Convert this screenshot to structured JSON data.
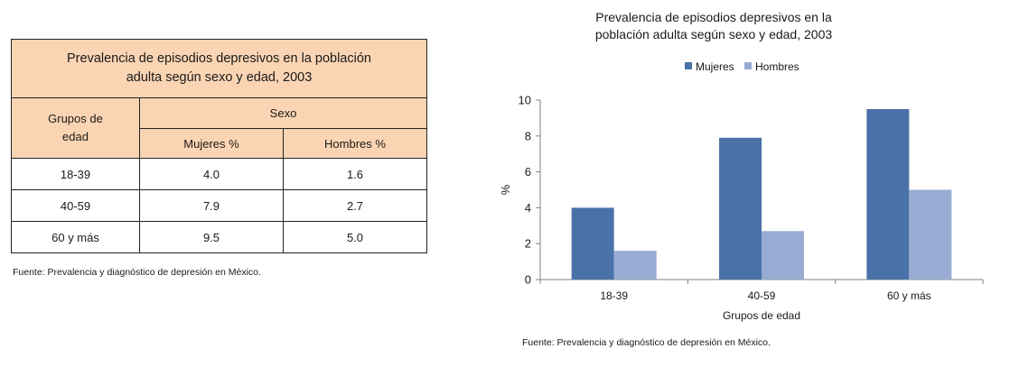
{
  "table": {
    "title": "Prevalencia de episodios depresivos en la población adulta según sexo y edad, 2003",
    "col_group_label": "Grupos de edad",
    "sexo_label": "Sexo",
    "mujeres_label": "Mujeres %",
    "hombres_label": "Hombres %",
    "rows": [
      {
        "group": "18-39",
        "mujeres": "4.0",
        "hombres": "1.6"
      },
      {
        "group": "40-59",
        "mujeres": "7.9",
        "hombres": "2.7"
      },
      {
        "group": "60 y más",
        "mujeres": "9.5",
        "hombres": "5.0"
      }
    ],
    "source": "Fuente: Prevalencia y diagnóstico de depresión en México."
  },
  "chart_data": {
    "type": "bar",
    "title": "Prevalencia de episodios depresivos en la población adulta según sexo y edad, 2003",
    "categories": [
      "18-39",
      "40-59",
      "60 y más"
    ],
    "series": [
      {
        "name": "Mujeres",
        "values": [
          4.0,
          7.9,
          9.5
        ],
        "color": "#4a72a8"
      },
      {
        "name": "Hombres",
        "values": [
          1.6,
          2.7,
          5.0
        ],
        "color": "#97abd3"
      }
    ],
    "xlabel": "Grupos de edad",
    "ylabel": "%",
    "ylim": [
      0,
      10
    ],
    "yticks": [
      "0",
      "2",
      "4",
      "6",
      "8",
      "10"
    ],
    "legend": "top-center",
    "source": "Fuente: Prevalencia y diagnóstico de depresión en México."
  }
}
